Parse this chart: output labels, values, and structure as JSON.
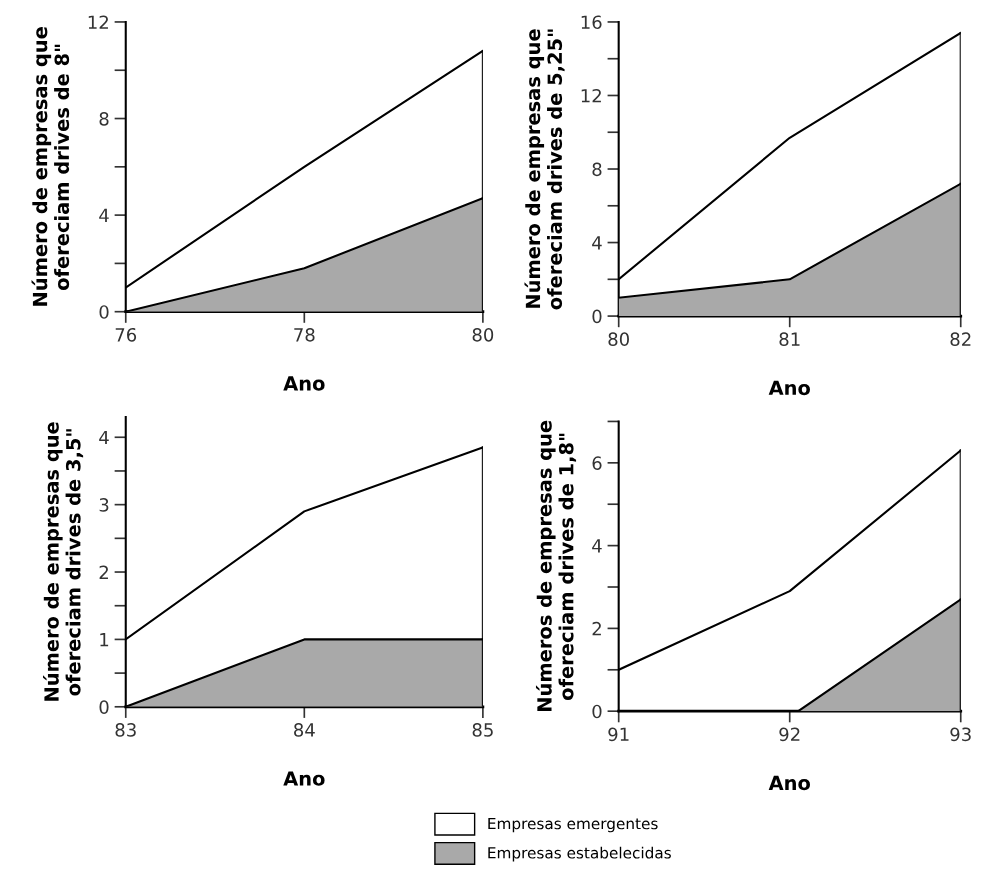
{
  "chart_data": [
    {
      "type": "area",
      "xlabel": "Ano",
      "ylabel": "Número de empresas que\nofereciam drives de 8\"",
      "x": [
        76,
        78,
        80
      ],
      "xlim": [
        76,
        80
      ],
      "xticks": [
        76,
        78,
        80
      ],
      "ylim": [
        0,
        12
      ],
      "yticks": [
        0,
        {
          "value": 2,
          "label": null
        },
        4,
        {
          "value": 6,
          "label": null
        },
        8,
        {
          "value": 10,
          "label": null
        },
        12
      ],
      "series": [
        {
          "color": "#ffffff",
          "values": [
            1,
            6,
            10.8
          ]
        },
        {
          "color": "#a9a9a9",
          "values": [
            0,
            1.8,
            4.7
          ]
        }
      ]
    },
    {
      "type": "area",
      "xlabel": "Ano",
      "ylabel": "Número de empresas que\nofereciam drives de 5,25\"",
      "x": [
        80,
        81,
        82
      ],
      "xlim": [
        80,
        82
      ],
      "xticks": [
        80,
        81,
        82
      ],
      "ylim": [
        0,
        16
      ],
      "yticks": [
        0,
        {
          "value": 2,
          "label": null
        },
        4,
        {
          "value": 6,
          "label": null
        },
        8,
        {
          "value": 10,
          "label": null
        },
        12,
        {
          "value": 14,
          "label": null
        },
        16
      ],
      "series": [
        {
          "color": "#ffffff",
          "values": [
            2,
            9.7,
            15.4
          ]
        },
        {
          "color": "#a9a9a9",
          "values": [
            1,
            2,
            7.2
          ]
        }
      ]
    },
    {
      "type": "area",
      "xlabel": "Ano",
      "ylabel": "Número de empresas que\nofereciam drives de 3,5\"",
      "x": [
        83,
        84,
        85
      ],
      "xlim": [
        83,
        85
      ],
      "xticks": [
        83,
        84,
        85
      ],
      "ylim": [
        0,
        4.3
      ],
      "yticks": [
        0,
        {
          "value": 0.5,
          "label": null
        },
        1,
        {
          "value": 1.5,
          "label": null
        },
        2,
        {
          "value": 2.5,
          "label": null
        },
        3,
        {
          "value": 3.5,
          "label": null
        },
        4
      ],
      "series": [
        {
          "color": "#ffffff",
          "values": [
            1,
            2.9,
            3.85
          ]
        },
        {
          "color": "#a9a9a9",
          "values": [
            0,
            1,
            1
          ]
        }
      ]
    },
    {
      "type": "area",
      "xlabel": "Ano",
      "ylabel": "Números de empresas que\nofereciam drives de 1,8\"",
      "x": [
        91,
        92,
        93
      ],
      "xlim": [
        91,
        93
      ],
      "xticks": [
        91,
        92,
        93
      ],
      "ylim": [
        0,
        7
      ],
      "yticks": [
        0,
        {
          "value": 1,
          "label": null
        },
        2,
        {
          "value": 3,
          "label": null
        },
        4,
        {
          "value": 5,
          "label": null
        },
        6,
        {
          "value": 7,
          "label": null
        }
      ],
      "legend": "bottom",
      "series": [
        {
          "name": "Empresas emergentes",
          "color": "#ffffff",
          "values": [
            1,
            2.9,
            6.3
          ]
        },
        {
          "name": "Empresas estabelecidas",
          "color": "#a9a9a9",
          "x": [
            91,
            92,
            92.05,
            93
          ],
          "values": [
            0,
            0,
            0,
            2.7
          ]
        }
      ]
    }
  ]
}
